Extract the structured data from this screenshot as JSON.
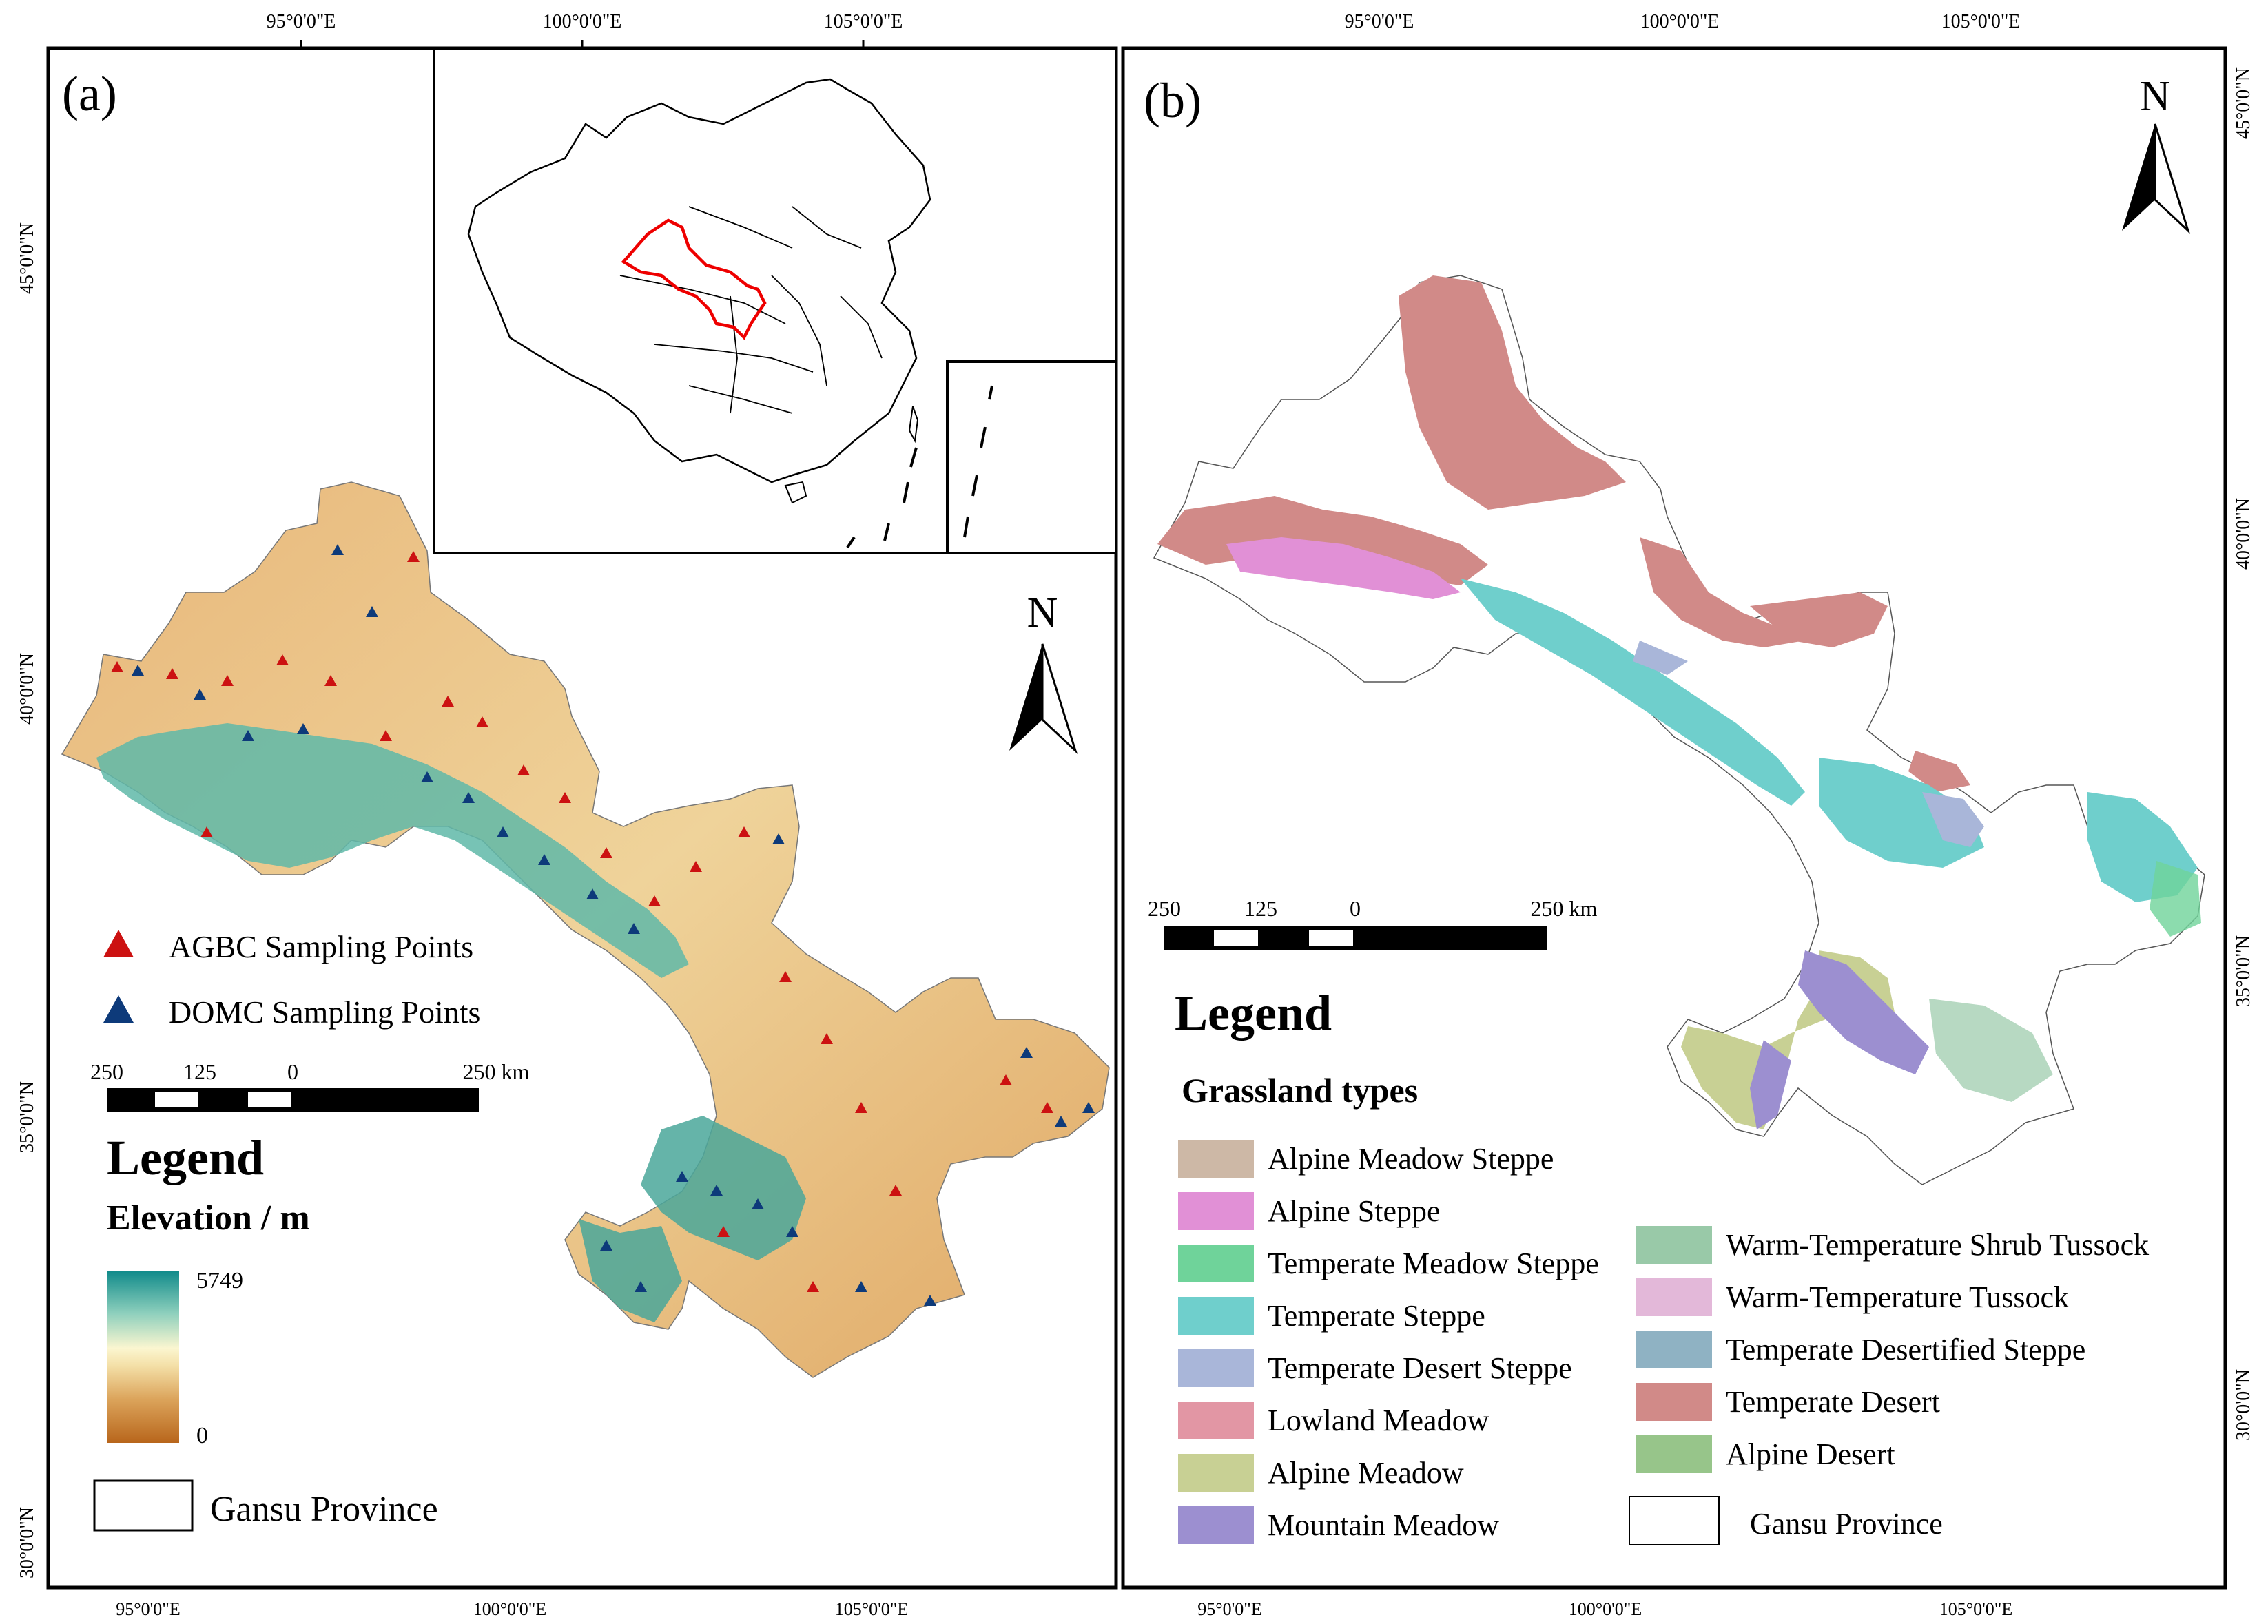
{
  "panel_a": {
    "label": "(a)",
    "top_ticks": [
      "95°0'0\"E",
      "100°0'0\"E",
      "105°0'0\"E"
    ],
    "bottom_ticks": [
      "95°0'0\"E",
      "100°0'0\"E",
      "105°0'0\"E"
    ],
    "left_ticks": [
      "45°0'0\"N",
      "40°0'0\"N",
      "35°0'0\"N",
      "30°0'0\"N"
    ],
    "north_label": "N",
    "legend_title": "Legend",
    "elevation_title": "Elevation / m",
    "elevation_max": "5749",
    "elevation_min": "0",
    "points": [
      {
        "label": "AGBC Sampling Points",
        "color": "#cc1111"
      },
      {
        "label": "DOMC Sampling Points",
        "color": "#0d3a7a"
      }
    ],
    "scale_labels": [
      "250",
      "125",
      "0",
      "250 km"
    ],
    "province_label": "Gansu Province",
    "inset_highlight_color": "#ee0000"
  },
  "panel_b": {
    "label": "(b)",
    "top_ticks": [
      "95°0'0\"E",
      "100°0'0\"E",
      "105°0'0\"E"
    ],
    "bottom_ticks": [
      "95°0'0\"E",
      "100°0'0\"E",
      "105°0'0\"E"
    ],
    "right_ticks": [
      "45°0'0\"N",
      "40°0'0\"N",
      "35°0'0\"N",
      "30°0'0\"N"
    ],
    "north_label": "N",
    "scale_labels": [
      "250",
      "125",
      "0",
      "250 km"
    ],
    "legend_title": "Legend",
    "grassland_title": "Grassland types",
    "grassland_types_col1": [
      {
        "label": "Alpine Meadow Steppe",
        "color": "#cdb8a6"
      },
      {
        "label": "Alpine Steppe",
        "color": "#e190d6"
      },
      {
        "label": "Temperate Meadow Steppe",
        "color": "#6fd39a"
      },
      {
        "label": "Temperate Steppe",
        "color": "#6fcfcc"
      },
      {
        "label": "Temperate Desert Steppe",
        "color": "#a9b6d9"
      },
      {
        "label": "Lowland Meadow",
        "color": "#e296a4"
      },
      {
        "label": "Alpine Meadow",
        "color": "#c8d094"
      },
      {
        "label": "Mountain Meadow",
        "color": "#9c8fd0"
      }
    ],
    "grassland_types_col2": [
      {
        "label": "Warm-Temperature Shrub Tussock",
        "color": "#99c9a8"
      },
      {
        "label": "Warm-Temperature Tussock",
        "color": "#e3b8d9"
      },
      {
        "label": "Temperate Desertified Steppe",
        "color": "#8fb2c3"
      },
      {
        "label": "Temperate Desert",
        "color": "#d18a88"
      },
      {
        "label": "Alpine Desert",
        "color": "#97c58a"
      }
    ],
    "province_label": "Gansu Province"
  }
}
